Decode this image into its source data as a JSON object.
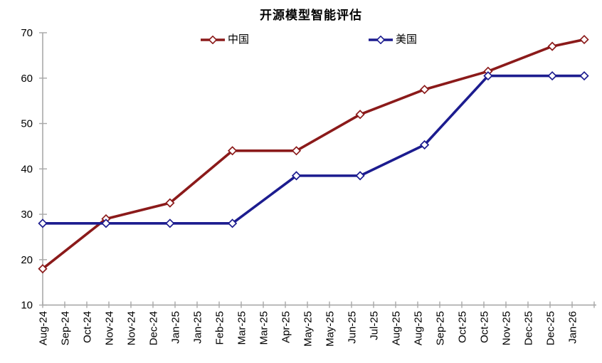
{
  "title": "开源模型智能评估",
  "legend": {
    "position": "top",
    "items": [
      {
        "label": "中国",
        "color": "#8B1A1A"
      },
      {
        "label": "美国",
        "color": "#1C1C8F"
      }
    ]
  },
  "chart_data": {
    "type": "line",
    "title": "开源模型智能评估",
    "grid": false,
    "legend_position": "top-center",
    "axis_color": "#A8A8A8",
    "x_tick_labels": [
      "Aug-24",
      "Sep-24",
      "Oct-24",
      "Nov-24",
      "Nov-24",
      "Dec-24",
      "Jan-25",
      "Jan-25",
      "Feb-25",
      "Mar-25",
      "Mar-25",
      "Apr-25",
      "May-25",
      "May-25",
      "Jun-25",
      "Jul-25",
      "Aug-25",
      "Aug-25",
      "Sep-25",
      "Oct-25",
      "Oct-25",
      "Nov-25",
      "Dec-25",
      "Dec-25",
      "Jan-26"
    ],
    "y_axis": {
      "min": 10,
      "max": 70,
      "step": 10,
      "tick_labels": [
        "70",
        "60",
        "50",
        "40",
        "30",
        "20",
        "10"
      ]
    },
    "series": [
      {
        "name": "中国",
        "color": "#8B1A1A",
        "marker": "open-diamond",
        "points": [
          {
            "month": "Aug-24",
            "x_index": 0,
            "value": 18
          },
          {
            "month": "Nov-24",
            "x_index": 2.87,
            "value": 29
          },
          {
            "month": "Jan-25",
            "x_index": 5.77,
            "value": 32.5
          },
          {
            "month": "Mar-25",
            "x_index": 8.6,
            "value": 44
          },
          {
            "month": "Apr-25",
            "x_index": 11.5,
            "value": 44
          },
          {
            "month": "Jun-25",
            "x_index": 14.39,
            "value": 52
          },
          {
            "month": "Aug-25",
            "x_index": 17.31,
            "value": 57.5
          },
          {
            "month": "Oct-25",
            "x_index": 20.19,
            "value": 61.5
          },
          {
            "month": "Dec-25",
            "x_index": 23.1,
            "value": 67
          },
          {
            "month": "Jan-26",
            "x_index": 24.55,
            "value": 68.5
          }
        ]
      },
      {
        "name": "美国",
        "color": "#1C1C8F",
        "marker": "open-diamond",
        "points": [
          {
            "month": "Aug-24",
            "x_index": 0,
            "value": 28
          },
          {
            "month": "Nov-24",
            "x_index": 2.87,
            "value": 28
          },
          {
            "month": "Jan-25",
            "x_index": 5.77,
            "value": 28
          },
          {
            "month": "Mar-25",
            "x_index": 8.6,
            "value": 28
          },
          {
            "month": "Apr-25",
            "x_index": 11.5,
            "value": 38.5
          },
          {
            "month": "Jun-25",
            "x_index": 14.39,
            "value": 38.5
          },
          {
            "month": "Aug-25",
            "x_index": 17.31,
            "value": 45.3
          },
          {
            "month": "Oct-25",
            "x_index": 20.19,
            "value": 60.5
          },
          {
            "month": "Dec-25",
            "x_index": 23.1,
            "value": 60.5
          },
          {
            "month": "Jan-26",
            "x_index": 24.55,
            "value": 60.5
          }
        ]
      }
    ]
  }
}
